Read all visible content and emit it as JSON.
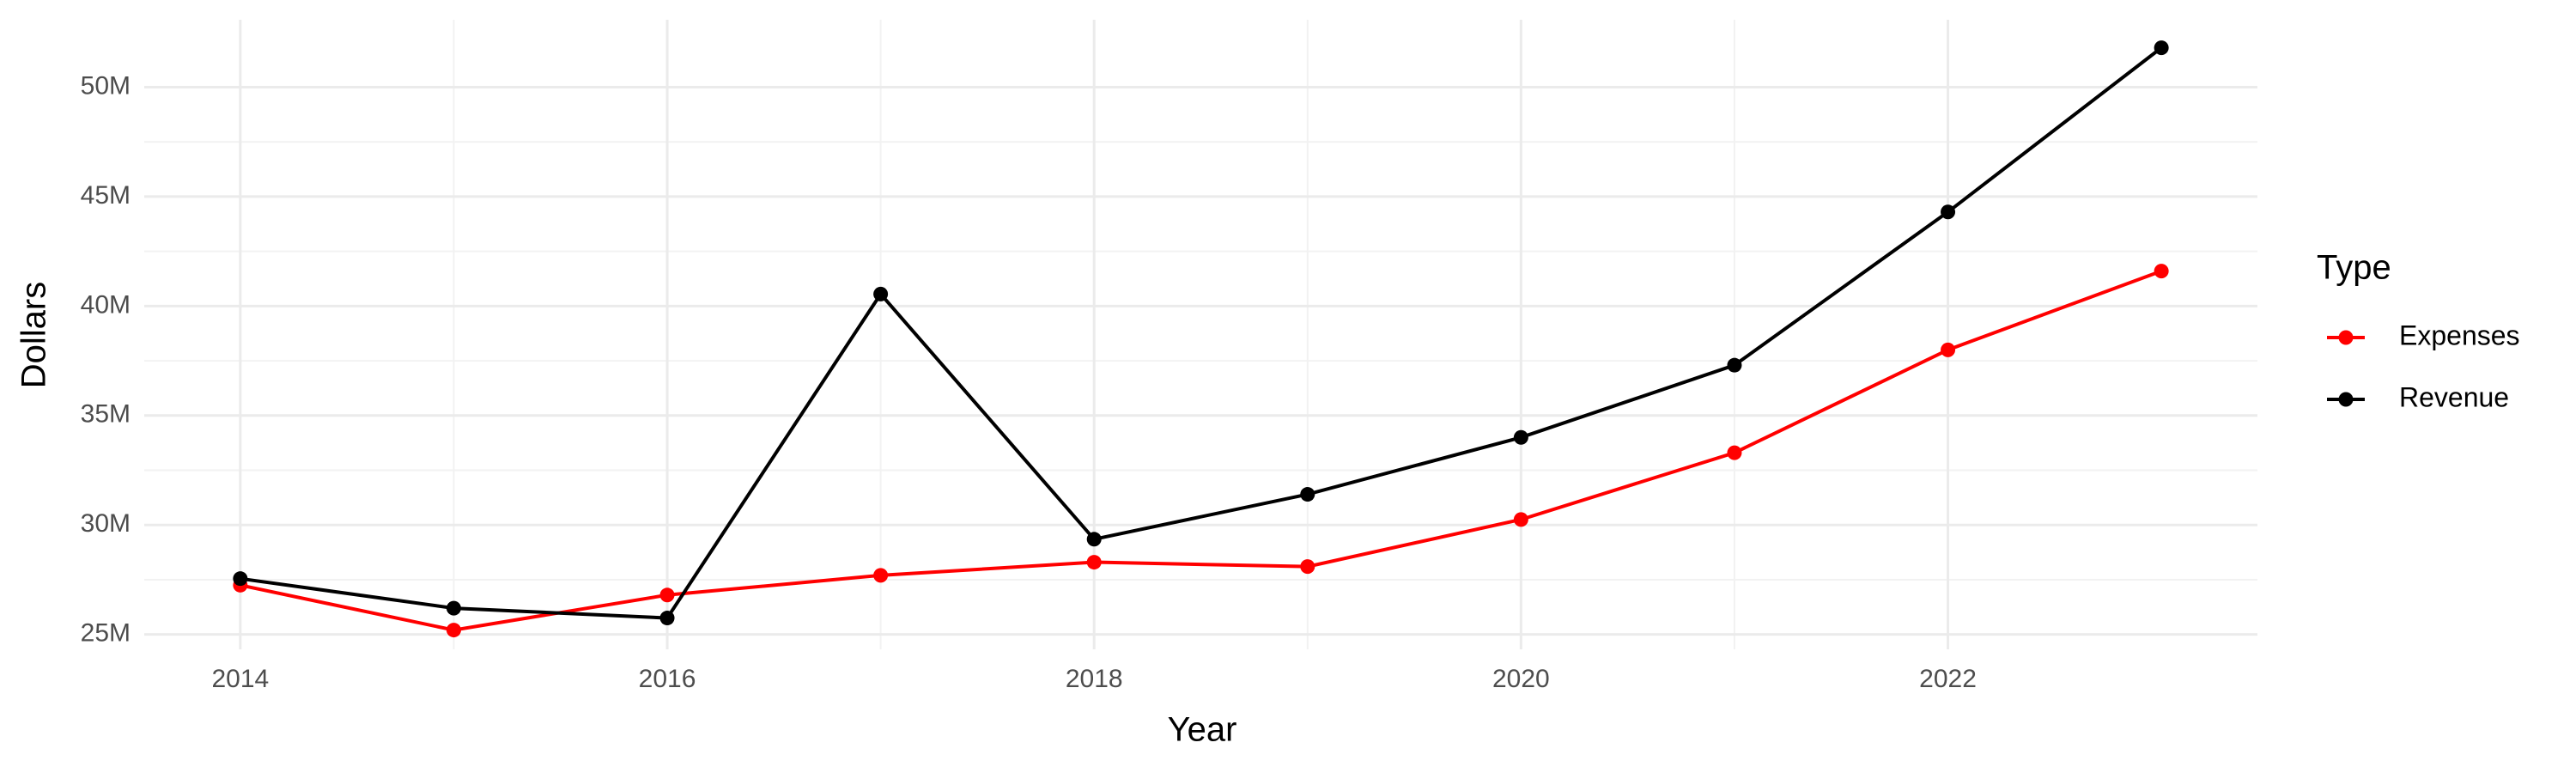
{
  "chart_data": {
    "type": "line",
    "x_label": "Year",
    "y_label": "Dollars",
    "legend_title": "Type",
    "legend_position": "right",
    "grid": true,
    "x": [
      2014,
      2015,
      2016,
      2017,
      2018,
      2019,
      2020,
      2021,
      2022,
      2023
    ],
    "series": [
      {
        "name": "Expenses",
        "color": "#ff0000",
        "values": [
          27250000,
          25200000,
          26800000,
          27700000,
          28300000,
          28100000,
          30250000,
          33300000,
          38000000,
          41600000
        ]
      },
      {
        "name": "Revenue",
        "color": "#000000",
        "values": [
          27550000,
          26200000,
          25750000,
          40550000,
          29350000,
          31400000,
          34000000,
          37300000,
          44300000,
          51800000
        ]
      }
    ],
    "xlim": [
      2013.55,
      2023.45
    ],
    "xticks": [
      2014,
      2016,
      2018,
      2020,
      2022
    ],
    "ylim": [
      24320000,
      53080000
    ],
    "yticks": [
      {
        "value": 25000000,
        "label": "25M"
      },
      {
        "value": 30000000,
        "label": "30M"
      },
      {
        "value": 35000000,
        "label": "35M"
      },
      {
        "value": 40000000,
        "label": "40M"
      },
      {
        "value": 45000000,
        "label": "45M"
      },
      {
        "value": 50000000,
        "label": "50M"
      }
    ]
  }
}
